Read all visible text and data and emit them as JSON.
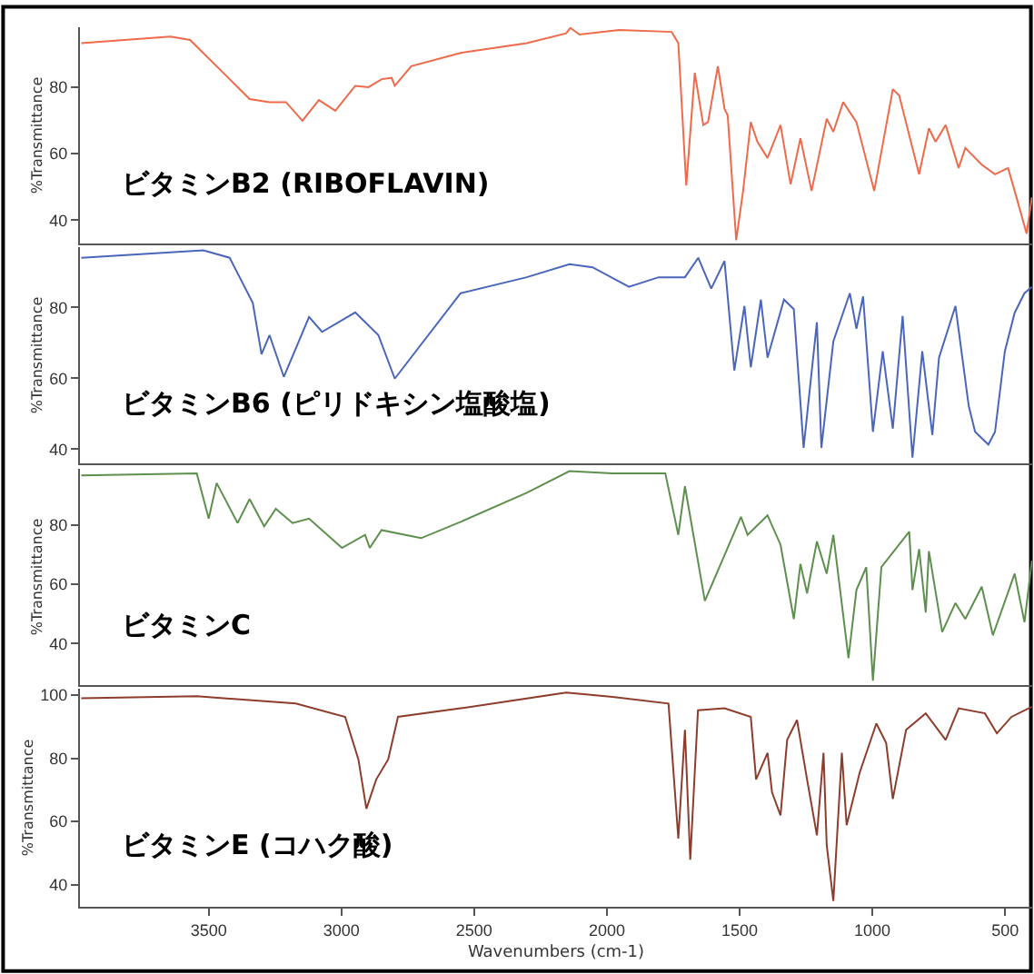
{
  "chart_data": [
    {
      "type": "line",
      "ylabel": "%Transmittance",
      "xlim": [
        3985,
        398
      ],
      "ylim": [
        33,
        98
      ],
      "yticks": [
        40,
        60,
        80
      ],
      "tick_labels": "y",
      "x": [
        3980,
        3644,
        3570,
        3421,
        3346,
        3271,
        3209,
        3147,
        3085,
        3023,
        2948,
        2898,
        2848,
        2811,
        2799,
        2737,
        2551,
        2302,
        2153,
        2138,
        2103,
        1954,
        1756,
        1731,
        1701,
        1669,
        1637,
        1619,
        1582,
        1557,
        1545,
        1513,
        1487,
        1458,
        1433,
        1395,
        1346,
        1308,
        1271,
        1229,
        1172,
        1147,
        1110,
        1060,
        993,
        923,
        899,
        824,
        787,
        762,
        724,
        675,
        650,
        588,
        538,
        489,
        464,
        419,
        399
      ],
      "series": [
        {
          "name": "ビタミンB2 (RIBOFLAVIN)",
          "color": "#ee6a4a",
          "values": [
            93.2,
            95.2,
            94.2,
            82.4,
            76.4,
            75.5,
            75.5,
            69.9,
            76.1,
            72.9,
            80.4,
            80,
            82.4,
            82.8,
            80.4,
            86.3,
            90.3,
            93.2,
            96.2,
            97.8,
            95.8,
            97.2,
            96.6,
            93.2,
            50.4,
            84.3,
            68.6,
            69.5,
            86.3,
            73.5,
            71.5,
            34.0,
            48.8,
            69.5,
            63.6,
            58.7,
            68.6,
            50.8,
            64.6,
            48.8,
            70.5,
            66.6,
            75.5,
            69.5,
            48.8,
            79.4,
            77.5,
            53.8,
            67.6,
            63.6,
            68.6,
            55.7,
            61.7,
            56.7,
            53.8,
            55.7,
            48.8,
            36.0,
            46.9
          ]
        }
      ]
    },
    {
      "type": "line",
      "ylabel": "%Transmittance",
      "xlim": [
        3985,
        398
      ],
      "ylim": [
        36,
        97
      ],
      "yticks": [
        40,
        60,
        80
      ],
      "tick_labels": "y",
      "x": [
        3980,
        3520,
        3421,
        3334,
        3301,
        3271,
        3217,
        3122,
        3073,
        2948,
        2861,
        2799,
        2551,
        2302,
        2141,
        2054,
        1917,
        1805,
        1706,
        1656,
        1607,
        1557,
        1520,
        1482,
        1458,
        1420,
        1395,
        1333,
        1296,
        1259,
        1209,
        1192,
        1147,
        1085,
        1060,
        1035,
        998,
        961,
        923,
        886,
        849,
        812,
        774,
        749,
        687,
        637,
        613,
        563,
        538,
        501,
        464,
        427,
        399
      ],
      "series": [
        {
          "name": "ビタミンB6 (ピリドキシン塩酸塩)",
          "color": "#4a66bb",
          "values": [
            94.0,
            96.1,
            94.0,
            81.3,
            66.8,
            72.2,
            60.4,
            77.3,
            73.1,
            78.6,
            72.2,
            59.9,
            84.0,
            88.5,
            92.2,
            91.3,
            85.8,
            88.5,
            88.5,
            94.0,
            85.3,
            93.1,
            62.2,
            80.4,
            63.1,
            82.2,
            65.8,
            82.2,
            79.5,
            40.4,
            75.8,
            40.4,
            70.4,
            84.0,
            74.0,
            83.1,
            44.9,
            67.6,
            45.8,
            77.6,
            37.6,
            67.6,
            44.0,
            65.8,
            80.4,
            52.2,
            44.9,
            41.3,
            44.9,
            67.6,
            78.5,
            84.0,
            85.8
          ]
        }
      ]
    },
    {
      "type": "line",
      "ylabel": "%Transmittance",
      "xlim": [
        3985,
        398
      ],
      "ylim": [
        26,
        99
      ],
      "yticks": [
        40,
        60,
        80
      ],
      "tick_labels": "y",
      "x": [
        3980,
        3545,
        3500,
        3470,
        3391,
        3346,
        3291,
        3247,
        3184,
        3122,
        2998,
        2911,
        2893,
        2849,
        2700,
        2551,
        2302,
        2141,
        1979,
        1780,
        1731,
        1706,
        1631,
        1495,
        1470,
        1395,
        1346,
        1296,
        1271,
        1246,
        1209,
        1172,
        1147,
        1090,
        1060,
        1023,
        998,
        966,
        861,
        849,
        824,
        799,
        787,
        737,
        687,
        650,
        588,
        546,
        464,
        427,
        399
      ],
      "series": [
        {
          "name": "ビタミンC",
          "color": "#5e8f4e",
          "values": [
            96.8,
            97.5,
            82.2,
            94.2,
            80.7,
            88.8,
            79.6,
            85.5,
            80.7,
            82.2,
            72.3,
            76.7,
            72.3,
            78.3,
            75.6,
            81.1,
            90.9,
            98.2,
            97.5,
            97.5,
            76.7,
            93.1,
            54.4,
            82.8,
            76.7,
            83.3,
            73.4,
            48.3,
            66.9,
            57.0,
            74.5,
            63.6,
            76.7,
            35.1,
            58.1,
            65.8,
            27.5,
            65.8,
            77.8,
            58.1,
            71.9,
            50.5,
            71.2,
            43.9,
            53.7,
            48.3,
            59.2,
            42.8,
            63.6,
            47.2,
            68.0
          ]
        }
      ]
    },
    {
      "type": "line",
      "ylabel": "%Transmittance",
      "xlabel": "Wavenumbers (cm-1)",
      "xlim": [
        3985,
        398
      ],
      "xticks": [
        3500,
        3000,
        2500,
        2000,
        1500,
        1000,
        500
      ],
      "ylim": [
        33,
        102
      ],
      "yticks": [
        40,
        60,
        80,
        100
      ],
      "x": [
        3980,
        3545,
        3172,
        2986,
        2936,
        2906,
        2869,
        2824,
        2787,
        2551,
        2153,
        1979,
        1768,
        1731,
        1706,
        1686,
        1657,
        1557,
        1458,
        1438,
        1395,
        1378,
        1346,
        1321,
        1284,
        1246,
        1209,
        1184,
        1172,
        1147,
        1115,
        1097,
        1048,
        985,
        948,
        923,
        873,
        799,
        724,
        675,
        576,
        531,
        476,
        399
      ],
      "series": [
        {
          "name": "ビタミンE (コハク酸)",
          "color": "#8e3d2c",
          "values": [
            99.0,
            99.6,
            97.3,
            93.1,
            79.6,
            64.0,
            73.3,
            79.6,
            93.1,
            95.8,
            100.8,
            99.4,
            97.3,
            54.6,
            89.0,
            47.9,
            95.2,
            95.8,
            93.1,
            73.3,
            81.7,
            69.2,
            61.9,
            85.8,
            92.1,
            73.3,
            55.6,
            81.7,
            52.5,
            34.8,
            81.7,
            58.8,
            75.4,
            91.0,
            84.8,
            67.1,
            89.0,
            94.2,
            85.8,
            95.8,
            94.2,
            87.9,
            93.1,
            96.3
          ]
        }
      ]
    }
  ]
}
